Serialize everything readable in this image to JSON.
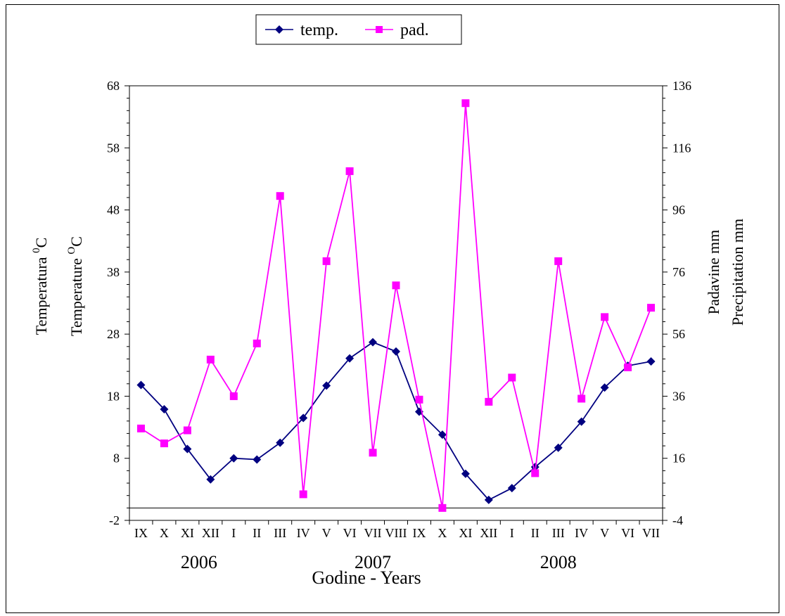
{
  "chart_data": {
    "type": "line",
    "title": "",
    "xlabel": "Godine - Years",
    "ylabel_left": [
      "Temperatura ⁰C",
      "Temperature ᴼC"
    ],
    "ylabel_left_parts": {
      "line1": {
        "text": "Temperatura ",
        "sup": "0",
        "unit": "C"
      },
      "line2": {
        "text": "Temperature ",
        "sup": "O",
        "unit": "C"
      }
    },
    "ylabel_right": [
      "Padavine mm",
      "Precipitation  mm"
    ],
    "ylim_left": [
      -2,
      68
    ],
    "ylim_right": [
      -4,
      136
    ],
    "yticks_left": [
      -2,
      8,
      18,
      28,
      38,
      48,
      58,
      68
    ],
    "yticks_right": [
      -4,
      16,
      36,
      56,
      76,
      96,
      116,
      136
    ],
    "categories": [
      "IX",
      "X",
      "XI",
      "XII",
      "I",
      "II",
      "III",
      "IV",
      "V",
      "VI",
      "VII",
      "VIII",
      "IX",
      "X",
      "XI",
      "XII",
      "I",
      "II",
      "III",
      "IV",
      "V",
      "VI",
      "VII"
    ],
    "year_labels": [
      {
        "label": "2006",
        "category_index": 2.5
      },
      {
        "label": "2007",
        "category_index": 10
      },
      {
        "label": "2008",
        "category_index": 18
      }
    ],
    "legend_position": "top",
    "grid": false,
    "series": [
      {
        "name": "temp.",
        "axis": "left",
        "color": "#000080",
        "marker": "diamond",
        "values": [
          19.8,
          15.9,
          9.5,
          4.6,
          8.0,
          7.8,
          10.5,
          14.5,
          19.7,
          24.1,
          26.7,
          25.2,
          15.5,
          11.8,
          5.5,
          1.3,
          3.2,
          6.6,
          9.7,
          13.9,
          19.4,
          22.9,
          23.6
        ]
      },
      {
        "name": "pad.",
        "axis": "right",
        "color": "#FF00FF",
        "marker": "square",
        "values": [
          25.6,
          20.8,
          25.0,
          47.8,
          36.0,
          53.0,
          100.5,
          4.4,
          79.5,
          108.5,
          17.8,
          71.7,
          34.9,
          0.0,
          130.4,
          34.2,
          42.0,
          11.2,
          79.5,
          35.2,
          61.5,
          45.3,
          64.5
        ]
      }
    ]
  }
}
